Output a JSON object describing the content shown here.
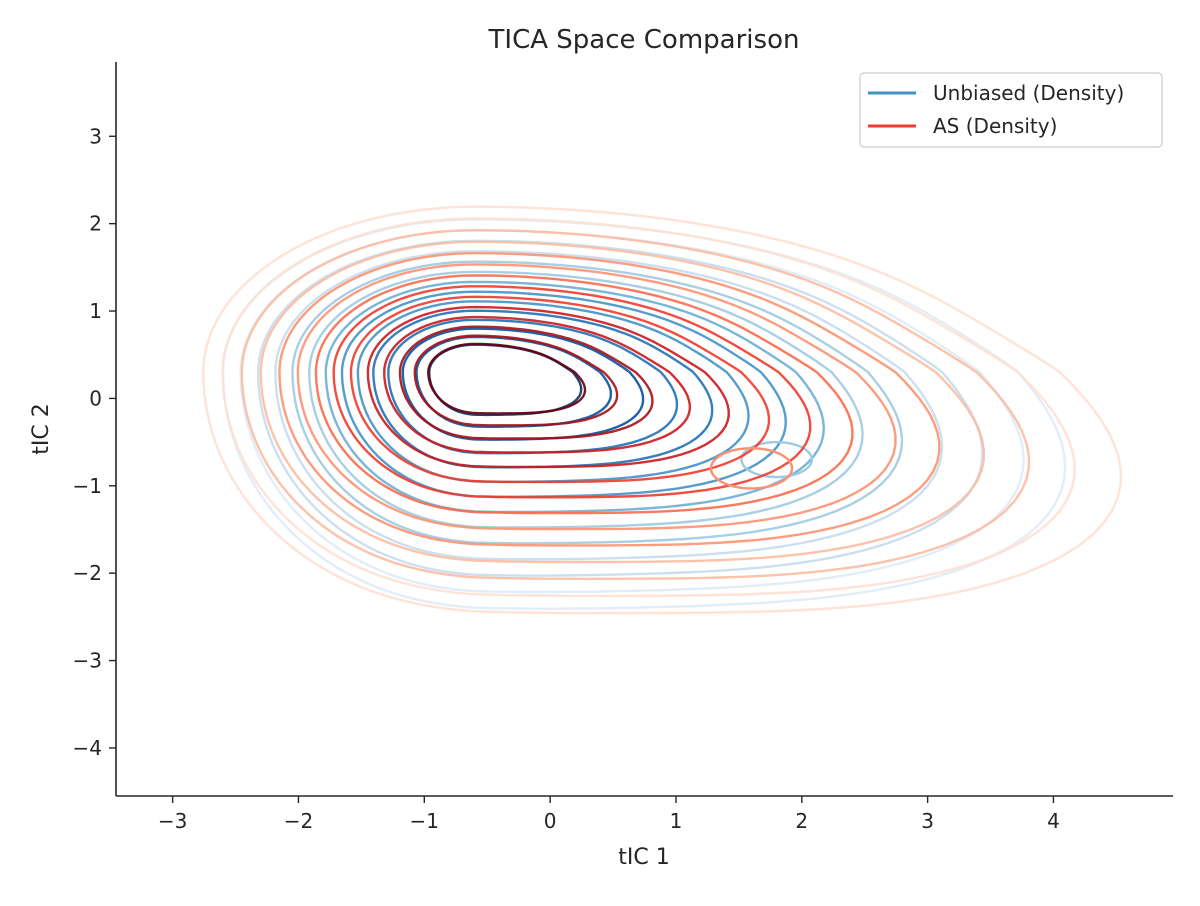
{
  "chart_data": {
    "type": "contour",
    "title": "TICA Space Comparison",
    "xlabel": "tIC 1",
    "ylabel": "tIC 2",
    "xlim": [
      -3.45,
      4.95
    ],
    "ylim": [
      -4.55,
      3.85
    ],
    "xticks": [
      -3,
      -2,
      -1,
      0,
      1,
      2,
      3,
      4
    ],
    "yticks": [
      -4,
      -3,
      -2,
      -1,
      0,
      1,
      2,
      3
    ],
    "xtick_labels": [
      "−3",
      "−2",
      "−1",
      "0",
      "1",
      "2",
      "3",
      "4"
    ],
    "ytick_labels": [
      "−4",
      "−3",
      "−2",
      "−1",
      "0",
      "1",
      "2",
      "3"
    ],
    "grid": false,
    "legend_position": "top-right",
    "series": [
      {
        "name": "Unbiased (Density)",
        "color": "#4292c6",
        "level_colors": [
          "#deebf7",
          "#c6dbef",
          "#9ecae1",
          "#6baed6",
          "#4292c6",
          "#2171b5",
          "#08519c",
          "#08306b"
        ],
        "mode": {
          "x": -0.6,
          "y": 0.3
        },
        "secondary_mode": {
          "x": 1.8,
          "y": -0.7
        },
        "extent": {
          "x": [
            -2.6,
            3.2
          ],
          "y": [
            -2.6,
            2.2
          ]
        }
      },
      {
        "name": "AS (Density)",
        "color": "#ef3b2c",
        "level_colors": [
          "#fee0d2",
          "#fcbba1",
          "#fc9272",
          "#fb6a4a",
          "#ef3b2c",
          "#cb181d",
          "#a50f15",
          "#67000d"
        ],
        "mode": {
          "x": -0.6,
          "y": 0.3
        },
        "secondary_mode": {
          "x": 1.6,
          "y": -0.8
        },
        "extent": {
          "x": [
            -2.8,
            3.5
          ],
          "y": [
            -2.7,
            2.4
          ]
        }
      }
    ]
  }
}
